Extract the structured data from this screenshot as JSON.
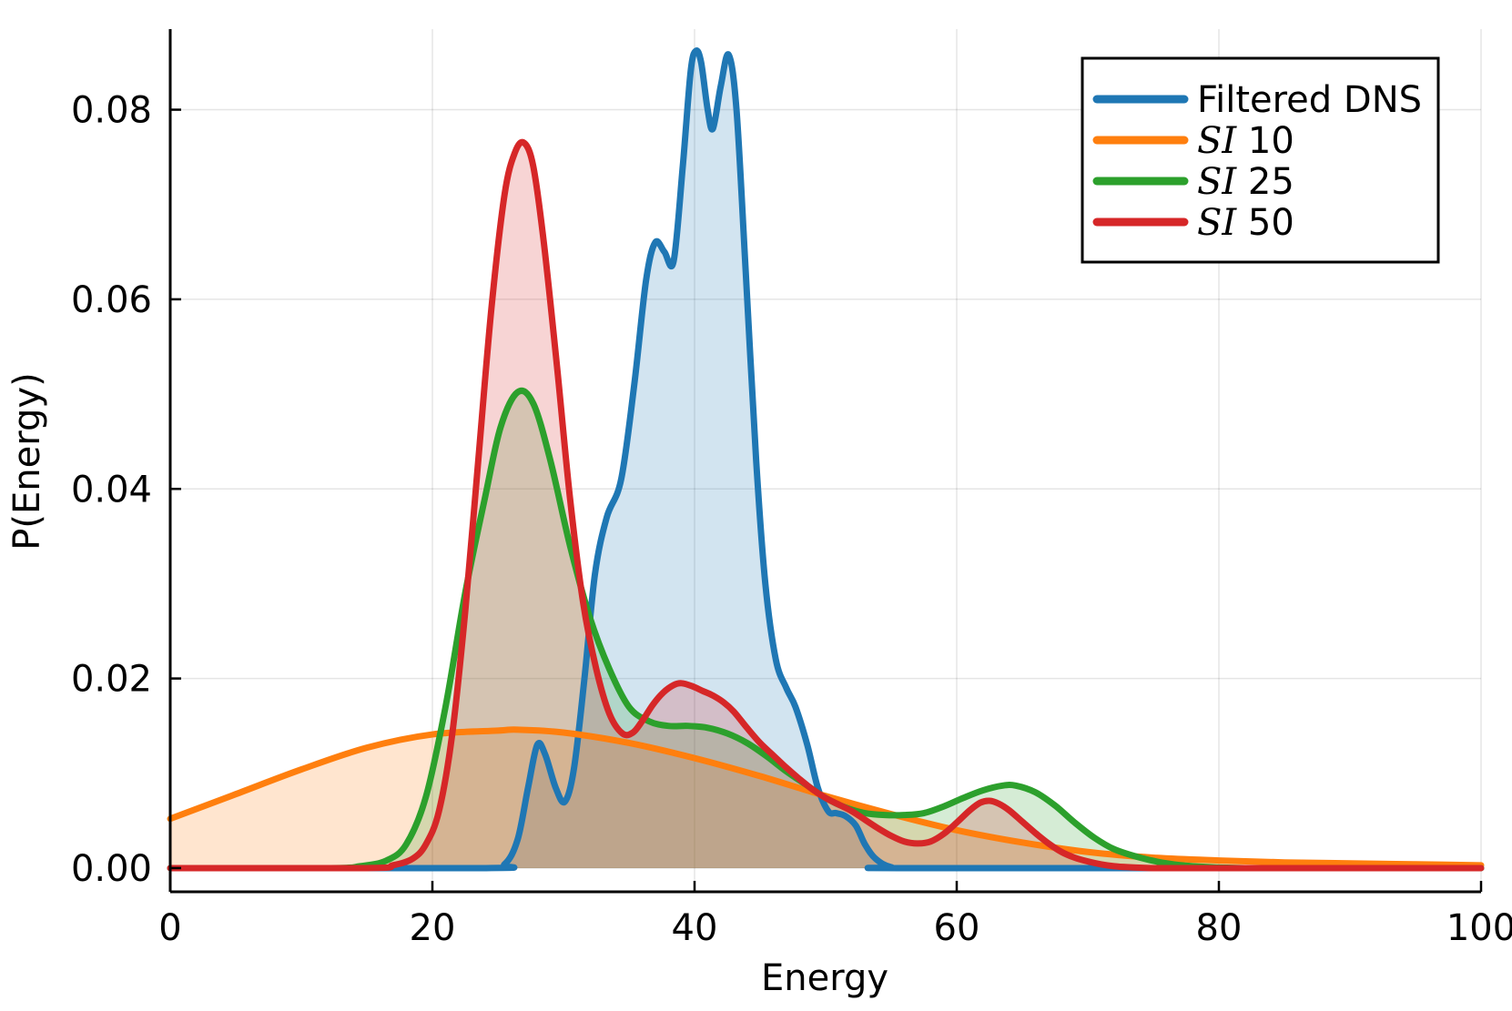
{
  "chart_data": {
    "type": "area",
    "title": "",
    "xlabel": "Energy",
    "ylabel": "P(Energy)",
    "xlim": [
      0,
      100
    ],
    "ylim": [
      -0.0025,
      0.0885
    ],
    "x_ticks": [
      0,
      20,
      40,
      60,
      80,
      100
    ],
    "x_tick_labels": [
      "0",
      "20",
      "40",
      "60",
      "80",
      "100"
    ],
    "y_ticks": [
      0.0,
      0.02,
      0.04,
      0.06,
      0.08
    ],
    "y_tick_labels": [
      "0.00",
      "0.02",
      "0.04",
      "0.06",
      "0.08"
    ],
    "grid": true,
    "legend_position": "top-right",
    "series": [
      {
        "name": "Filtered DNS",
        "label_symbol": "",
        "label_text": "Filtered DNS",
        "color": "#1f77b4",
        "x": [
          0,
          24,
          25.5,
          26.5,
          27.3,
          28,
          28.6,
          29.4,
          30.1,
          30.8,
          31.6,
          32.4,
          33.3,
          34.4,
          35.4,
          36.3,
          37,
          37.7,
          38.4,
          39.1,
          39.7,
          40.1,
          40.5,
          41,
          41.4,
          42,
          42.6,
          43.2,
          43.9,
          44.7,
          45.4,
          46.2,
          47,
          47.7,
          48.6,
          49.4,
          50.2,
          50.8,
          51.5,
          52.3,
          53,
          53.8,
          55,
          57,
          100
        ],
        "y": [
          0,
          0,
          0.0004,
          0.003,
          0.0085,
          0.013,
          0.012,
          0.0085,
          0.007,
          0.0105,
          0.02,
          0.031,
          0.037,
          0.041,
          0.051,
          0.062,
          0.066,
          0.065,
          0.064,
          0.074,
          0.084,
          0.0862,
          0.085,
          0.08,
          0.078,
          0.0825,
          0.0858,
          0.08,
          0.063,
          0.043,
          0.03,
          0.022,
          0.019,
          0.017,
          0.013,
          0.0085,
          0.006,
          0.0058,
          0.0055,
          0.0045,
          0.0025,
          0.001,
          0.0001,
          0,
          0
        ]
      },
      {
        "name": "SI 10",
        "label_symbol": "SI",
        "label_text": " 10",
        "color": "#ff7f0e",
        "x": [
          0,
          5,
          10,
          15,
          20,
          25,
          26.5,
          30,
          35,
          40,
          45,
          50,
          55,
          60,
          65,
          70,
          75,
          80,
          85,
          90,
          95,
          100
        ],
        "y": [
          0.0052,
          0.0078,
          0.0104,
          0.0127,
          0.0141,
          0.0145,
          0.0146,
          0.0143,
          0.0132,
          0.0116,
          0.0097,
          0.0076,
          0.0057,
          0.004,
          0.0027,
          0.0017,
          0.0011,
          0.0008,
          0.0006,
          0.0005,
          0.0004,
          0.0003
        ]
      },
      {
        "name": "SI 25",
        "label_symbol": "SI",
        "label_text": " 25",
        "color": "#2ca02c",
        "x": [
          0,
          12,
          14.5,
          16.5,
          18,
          19.5,
          21,
          22.5,
          24,
          25.2,
          26.5,
          27.7,
          29,
          30.5,
          32,
          33.5,
          35,
          36.5,
          38,
          39.5,
          41,
          42.5,
          44,
          45.5,
          47,
          48.5,
          50,
          51.5,
          53,
          54.5,
          56,
          57.5,
          59,
          60.5,
          62,
          63.5,
          64.5,
          66,
          67.5,
          69,
          70.5,
          72,
          74,
          76,
          78,
          82,
          88,
          100
        ],
        "y": [
          0,
          0,
          0.0002,
          0.0008,
          0.0025,
          0.0075,
          0.017,
          0.029,
          0.039,
          0.0465,
          0.0502,
          0.049,
          0.043,
          0.034,
          0.0265,
          0.021,
          0.017,
          0.0155,
          0.015,
          0.015,
          0.0148,
          0.0142,
          0.0132,
          0.0118,
          0.0102,
          0.0088,
          0.0074,
          0.0064,
          0.0058,
          0.0056,
          0.0056,
          0.0058,
          0.0065,
          0.0074,
          0.0082,
          0.0087,
          0.0087,
          0.008,
          0.0066,
          0.0048,
          0.0032,
          0.002,
          0.0011,
          0.0005,
          0.0002,
          0,
          0,
          0
        ]
      },
      {
        "name": "SI 50",
        "label_symbol": "SI",
        "label_text": " 50",
        "color": "#d62728",
        "x": [
          0,
          15,
          17,
          18.5,
          19.5,
          20.5,
          21.5,
          22.5,
          23.5,
          24.5,
          25.5,
          26.3,
          27,
          27.7,
          28.5,
          29.5,
          30.5,
          31.5,
          32.5,
          33.5,
          34.5,
          35.3,
          36,
          36.8,
          37.6,
          38.4,
          39,
          39.8,
          40.6,
          41.4,
          42.2,
          43,
          44,
          45,
          46,
          47,
          48,
          49,
          50,
          51,
          52,
          53,
          54,
          55,
          56,
          57,
          58,
          59,
          60,
          61,
          61.8,
          62.5,
          63.2,
          64,
          65,
          66,
          67,
          68,
          69,
          70,
          71,
          72,
          73,
          75,
          78,
          82,
          100
        ],
        "y": [
          0,
          0,
          0.0003,
          0.001,
          0.0025,
          0.006,
          0.014,
          0.027,
          0.043,
          0.059,
          0.071,
          0.0755,
          0.0765,
          0.074,
          0.066,
          0.053,
          0.039,
          0.028,
          0.021,
          0.0163,
          0.0142,
          0.0143,
          0.0155,
          0.0172,
          0.0185,
          0.0193,
          0.0195,
          0.0192,
          0.0187,
          0.0182,
          0.0175,
          0.0165,
          0.0148,
          0.0132,
          0.0119,
          0.0106,
          0.0094,
          0.0083,
          0.0074,
          0.0067,
          0.006,
          0.0051,
          0.0042,
          0.0034,
          0.0028,
          0.0026,
          0.0028,
          0.0036,
          0.0048,
          0.0061,
          0.0069,
          0.0071,
          0.0068,
          0.0061,
          0.0049,
          0.0037,
          0.0026,
          0.0017,
          0.0011,
          0.0007,
          0.0004,
          0.0002,
          0.0001,
          0,
          0,
          0,
          0
        ]
      }
    ]
  }
}
